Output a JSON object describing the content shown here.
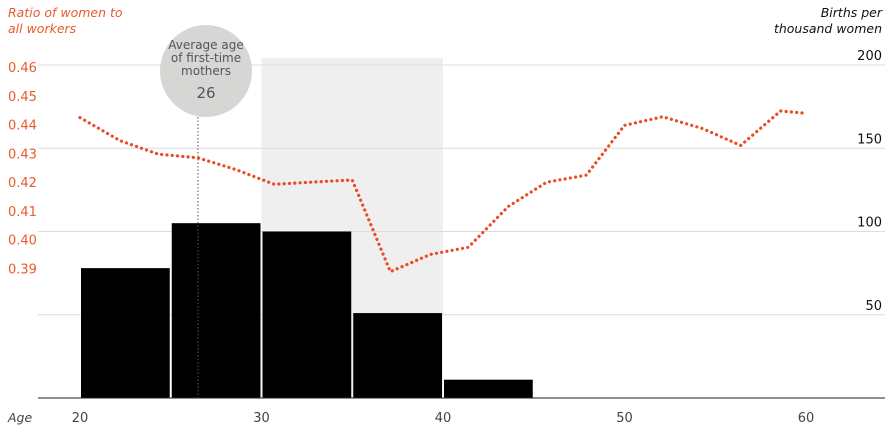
{
  "chart_data": {
    "type": "bar+line",
    "left_axis_label_lines": [
      "Ratio of women to",
      "all workers"
    ],
    "right_axis_label_lines": [
      "Births per",
      "thousand women"
    ],
    "x_axis_label": "Age",
    "x_ticks": [
      20,
      30,
      40,
      50,
      60
    ],
    "left_ticks": [
      "0.46",
      "0.45",
      "0.44",
      "0.43",
      "0.42",
      "0.41",
      "0.40",
      "0.39"
    ],
    "right_ticks": [
      200,
      150,
      100,
      50
    ],
    "xlim": [
      16,
      64
    ],
    "left_ylim": [
      0.3795,
      0.4653
    ],
    "right_ylim": [
      0,
      210
    ],
    "shaded_age_range": [
      30,
      40
    ],
    "annotation": {
      "lines": [
        "Average age",
        "of first-time",
        "mothers"
      ],
      "value": "26",
      "age": 26.5
    },
    "bars": [
      {
        "age_group": "20-24",
        "x_start": 20,
        "x_end": 25,
        "births_per_thousand": 78
      },
      {
        "age_group": "25-29",
        "x_start": 25,
        "x_end": 30,
        "births_per_thousand": 105
      },
      {
        "age_group": "30-34",
        "x_start": 30,
        "x_end": 35,
        "births_per_thousand": 100
      },
      {
        "age_group": "35-39",
        "x_start": 35,
        "x_end": 40,
        "births_per_thousand": 51
      },
      {
        "age_group": "40-44",
        "x_start": 40,
        "x_end": 45,
        "births_per_thousand": 11
      }
    ],
    "ratio_line": {
      "ages": [
        20,
        22.2,
        24.3,
        26.5,
        28.6,
        30.7,
        32.9,
        35,
        37.1,
        39.3,
        41.4,
        43.6,
        45.7,
        47.9,
        50,
        52.1,
        54.3,
        56.4,
        58.6,
        60
      ],
      "values": [
        0.4424,
        0.4344,
        0.4297,
        0.4284,
        0.4243,
        0.4192,
        0.42,
        0.4207,
        0.3888,
        0.3948,
        0.3973,
        0.4115,
        0.4199,
        0.4224,
        0.4397,
        0.4427,
        0.4386,
        0.4327,
        0.4447,
        0.4439
      ]
    },
    "colors": {
      "bars": "#000000",
      "line": "#ec4c24",
      "left_axis_text": "#e85b2b",
      "shade": "#eeefee",
      "annotation_circle": "#d6d6d4",
      "grid": "#dcdcdc"
    }
  }
}
